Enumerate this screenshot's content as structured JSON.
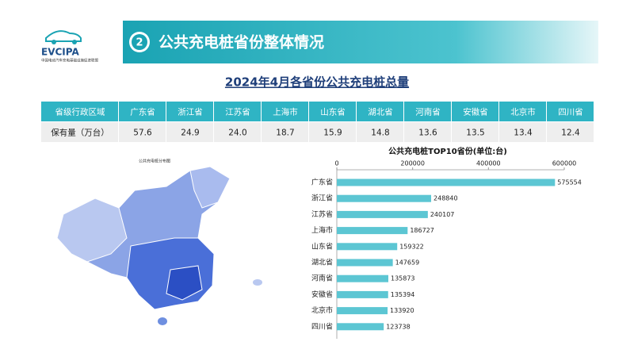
{
  "header": {
    "logo": "EVCIPA",
    "logo_subtitle": "中国电动汽车充电基础设施促进联盟",
    "badge": "2",
    "title": "公共充电桩省份整体情况"
  },
  "table": {
    "title": "2024年4月各省份公共充电桩总量",
    "rows": [
      [
        "省级行政区域",
        "广东省",
        "浙江省",
        "江苏省",
        "上海市",
        "山东省",
        "湖北省",
        "河南省",
        "安徽省",
        "北京市",
        "四川省"
      ],
      [
        "保有量（万台）",
        "57.6",
        "24.9",
        "24.0",
        "18.7",
        "15.9",
        "14.8",
        "13.6",
        "13.5",
        "13.4",
        "12.4"
      ]
    ]
  },
  "map": {
    "title": "公共充电桩分布图"
  },
  "chart_data": {
    "type": "hbar",
    "title": "公共充电桩TOP10省份(单位:台)",
    "categories": [
      "广东省",
      "浙江省",
      "江苏省",
      "上海市",
      "山东省",
      "湖北省",
      "河南省",
      "安徽省",
      "北京市",
      "四川省"
    ],
    "values": [
      575554,
      248840,
      240107,
      186727,
      159322,
      147659,
      135873,
      135394,
      133920,
      123738
    ],
    "color": "#5cc6d3",
    "xlim": [
      0,
      600000
    ],
    "xticks": [
      0,
      200000,
      400000,
      600000
    ]
  }
}
